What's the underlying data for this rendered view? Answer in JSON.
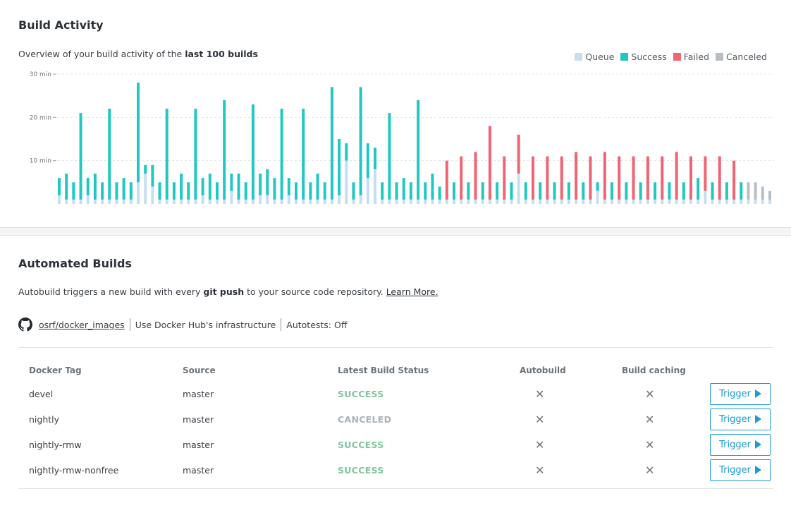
{
  "activity": {
    "title": "Build Activity",
    "overview_prefix": "Overview of your build activity of the ",
    "overview_bold": "last 100 builds",
    "legend": [
      {
        "label": "Queue",
        "color": "#c5dff0"
      },
      {
        "label": "Success",
        "color": "#22c7c2"
      },
      {
        "label": "Failed",
        "color": "#f06474"
      },
      {
        "label": "Canceled",
        "color": "#b7bec5"
      }
    ]
  },
  "chart_data": {
    "type": "bar",
    "stacked": true,
    "yticks": [
      10,
      20,
      30
    ],
    "ytick_labels": [
      "10 min",
      "20 min",
      "30 min"
    ],
    "ylim": [
      0,
      30
    ],
    "series_names": [
      "Queue",
      "Success",
      "Failed",
      "Canceled"
    ],
    "colors": {
      "queue": "#c5dff0",
      "success": "#22c7c2",
      "failed": "#f06474",
      "canceled": "#b7bec5"
    },
    "builds": [
      {
        "status": "success",
        "queue": 2,
        "total": 6
      },
      {
        "status": "success",
        "queue": 1,
        "total": 7
      },
      {
        "status": "success",
        "queue": 1,
        "total": 5
      },
      {
        "status": "success",
        "queue": 1,
        "total": 21
      },
      {
        "status": "success",
        "queue": 2,
        "total": 6
      },
      {
        "status": "success",
        "queue": 1,
        "total": 7
      },
      {
        "status": "success",
        "queue": 1,
        "total": 5
      },
      {
        "status": "success",
        "queue": 1,
        "total": 22
      },
      {
        "status": "success",
        "queue": 1,
        "total": 5
      },
      {
        "status": "success",
        "queue": 1,
        "total": 6
      },
      {
        "status": "success",
        "queue": 1,
        "total": 5
      },
      {
        "status": "success",
        "queue": 5,
        "total": 28
      },
      {
        "status": "success",
        "queue": 7,
        "total": 9
      },
      {
        "status": "success",
        "queue": 4,
        "total": 9
      },
      {
        "status": "success",
        "queue": 1,
        "total": 5
      },
      {
        "status": "success",
        "queue": 1,
        "total": 22
      },
      {
        "status": "success",
        "queue": 1,
        "total": 5
      },
      {
        "status": "success",
        "queue": 1,
        "total": 7
      },
      {
        "status": "success",
        "queue": 1,
        "total": 5
      },
      {
        "status": "success",
        "queue": 1,
        "total": 22
      },
      {
        "status": "success",
        "queue": 2,
        "total": 6
      },
      {
        "status": "success",
        "queue": 1,
        "total": 7
      },
      {
        "status": "success",
        "queue": 1,
        "total": 5
      },
      {
        "status": "success",
        "queue": 1,
        "total": 24
      },
      {
        "status": "success",
        "queue": 3,
        "total": 7
      },
      {
        "status": "success",
        "queue": 1,
        "total": 7
      },
      {
        "status": "success",
        "queue": 1,
        "total": 5
      },
      {
        "status": "success",
        "queue": 1,
        "total": 23
      },
      {
        "status": "success",
        "queue": 2,
        "total": 7
      },
      {
        "status": "success",
        "queue": 2,
        "total": 8
      },
      {
        "status": "success",
        "queue": 1,
        "total": 6
      },
      {
        "status": "success",
        "queue": 1,
        "total": 22
      },
      {
        "status": "success",
        "queue": 2,
        "total": 6
      },
      {
        "status": "success",
        "queue": 1,
        "total": 5
      },
      {
        "status": "success",
        "queue": 1,
        "total": 22
      },
      {
        "status": "success",
        "queue": 1,
        "total": 5
      },
      {
        "status": "success",
        "queue": 1,
        "total": 7
      },
      {
        "status": "success",
        "queue": 1,
        "total": 5
      },
      {
        "status": "success",
        "queue": 1,
        "total": 27
      },
      {
        "status": "success",
        "queue": 2,
        "total": 15
      },
      {
        "status": "success",
        "queue": 10,
        "total": 14
      },
      {
        "status": "success",
        "queue": 1,
        "total": 5
      },
      {
        "status": "success",
        "queue": 2,
        "total": 27
      },
      {
        "status": "success",
        "queue": 6,
        "total": 14
      },
      {
        "status": "success",
        "queue": 8,
        "total": 13
      },
      {
        "status": "success",
        "queue": 1,
        "total": 5
      },
      {
        "status": "success",
        "queue": 1,
        "total": 21
      },
      {
        "status": "success",
        "queue": 1,
        "total": 5
      },
      {
        "status": "success",
        "queue": 1,
        "total": 6
      },
      {
        "status": "success",
        "queue": 1,
        "total": 5
      },
      {
        "status": "success",
        "queue": 1,
        "total": 24
      },
      {
        "status": "success",
        "queue": 1,
        "total": 5
      },
      {
        "status": "success",
        "queue": 1,
        "total": 7
      },
      {
        "status": "success",
        "queue": 1,
        "total": 4
      },
      {
        "status": "failed",
        "queue": 1,
        "total": 10
      },
      {
        "status": "success",
        "queue": 1,
        "total": 5
      },
      {
        "status": "failed",
        "queue": 1,
        "total": 11
      },
      {
        "status": "success",
        "queue": 1,
        "total": 5
      },
      {
        "status": "failed",
        "queue": 1,
        "total": 12
      },
      {
        "status": "success",
        "queue": 1,
        "total": 5
      },
      {
        "status": "failed",
        "queue": 1,
        "total": 18
      },
      {
        "status": "success",
        "queue": 1,
        "total": 5
      },
      {
        "status": "failed",
        "queue": 1,
        "total": 11
      },
      {
        "status": "success",
        "queue": 1,
        "total": 5
      },
      {
        "status": "failed",
        "queue": 7,
        "total": 16
      },
      {
        "status": "success",
        "queue": 1,
        "total": 5
      },
      {
        "status": "failed",
        "queue": 1,
        "total": 11
      },
      {
        "status": "success",
        "queue": 1,
        "total": 5
      },
      {
        "status": "failed",
        "queue": 1,
        "total": 11
      },
      {
        "status": "success",
        "queue": 1,
        "total": 5
      },
      {
        "status": "failed",
        "queue": 1,
        "total": 11
      },
      {
        "status": "success",
        "queue": 1,
        "total": 5
      },
      {
        "status": "failed",
        "queue": 1,
        "total": 12
      },
      {
        "status": "success",
        "queue": 1,
        "total": 5
      },
      {
        "status": "failed",
        "queue": 1,
        "total": 11
      },
      {
        "status": "success",
        "queue": 3,
        "total": 5
      },
      {
        "status": "failed",
        "queue": 1,
        "total": 12
      },
      {
        "status": "success",
        "queue": 1,
        "total": 5
      },
      {
        "status": "failed",
        "queue": 1,
        "total": 11
      },
      {
        "status": "success",
        "queue": 1,
        "total": 5
      },
      {
        "status": "failed",
        "queue": 1,
        "total": 11
      },
      {
        "status": "success",
        "queue": 1,
        "total": 5
      },
      {
        "status": "failed",
        "queue": 1,
        "total": 11
      },
      {
        "status": "success",
        "queue": 1,
        "total": 5
      },
      {
        "status": "failed",
        "queue": 1,
        "total": 11
      },
      {
        "status": "success",
        "queue": 1,
        "total": 5
      },
      {
        "status": "failed",
        "queue": 1,
        "total": 12
      },
      {
        "status": "success",
        "queue": 1,
        "total": 5
      },
      {
        "status": "failed",
        "queue": 1,
        "total": 11
      },
      {
        "status": "success",
        "queue": 1,
        "total": 6
      },
      {
        "status": "failed",
        "queue": 3,
        "total": 11
      },
      {
        "status": "success",
        "queue": 1,
        "total": 5
      },
      {
        "status": "failed",
        "queue": 1,
        "total": 11
      },
      {
        "status": "success",
        "queue": 1,
        "total": 5
      },
      {
        "status": "failed",
        "queue": 1,
        "total": 10
      },
      {
        "status": "success",
        "queue": 1,
        "total": 5
      },
      {
        "status": "canceled",
        "queue": 1,
        "total": 5
      },
      {
        "status": "canceled",
        "queue": 1,
        "total": 5
      },
      {
        "status": "canceled",
        "queue": 1,
        "total": 4
      },
      {
        "status": "canceled",
        "queue": 1,
        "total": 3
      }
    ]
  },
  "builds_section": {
    "title": "Automated Builds",
    "intro_prefix": "Autobuild triggers a new build with every ",
    "intro_bold": "git push",
    "intro_suffix": " to your source code repository. ",
    "learn_more": "Learn More.",
    "repo": "osrf/docker_images",
    "infra": "Use Docker Hub's infrastructure",
    "autotests": "Autotests: Off"
  },
  "table": {
    "headers": {
      "tag": "Docker Tag",
      "source": "Source",
      "status": "Latest Build Status",
      "autobuild": "Autobuild",
      "caching": "Build caching"
    },
    "rows": [
      {
        "tag": "devel",
        "source": "master",
        "status": "SUCCESS",
        "autobuild": "✕",
        "caching": "✕",
        "trigger": "Trigger"
      },
      {
        "tag": "nightly",
        "source": "master",
        "status": "CANCELED",
        "autobuild": "✕",
        "caching": "✕",
        "trigger": "Trigger"
      },
      {
        "tag": "nightly-rmw",
        "source": "master",
        "status": "SUCCESS",
        "autobuild": "✕",
        "caching": "✕",
        "trigger": "Trigger"
      },
      {
        "tag": "nightly-rmw-nonfree",
        "source": "master",
        "status": "SUCCESS",
        "autobuild": "✕",
        "caching": "✕",
        "trigger": "Trigger"
      }
    ]
  }
}
